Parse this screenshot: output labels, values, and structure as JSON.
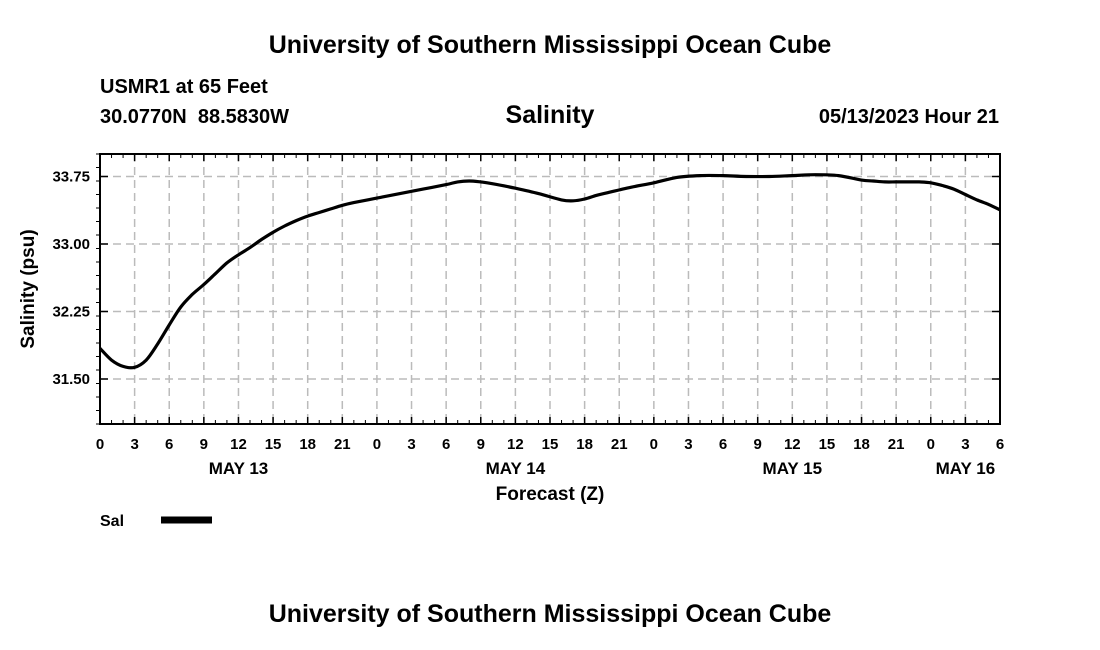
{
  "header": {
    "title": "University of Southern Mississippi Ocean Cube",
    "station": "USMR1 at 65 Feet",
    "coordinates": "30.0770N  88.5830W",
    "subtitle": "Salinity",
    "datetime": "05/13/2023 Hour 21"
  },
  "footer": {
    "title": "University of Southern Mississippi Ocean Cube"
  },
  "chart_data": {
    "type": "line",
    "title": "Salinity",
    "xlabel": "Forecast (Z)",
    "ylabel": "Salinity (psu)",
    "x_unit": "hours since MAY 13 00Z",
    "xlim": [
      0,
      78
    ],
    "ylim": [
      31.0,
      34.0
    ],
    "ytick_values": [
      31.5,
      32.25,
      33.0,
      33.75
    ],
    "ytick_labels": [
      "31.50",
      "32.25",
      "33.00",
      "33.75"
    ],
    "xtick_values": [
      0,
      3,
      6,
      9,
      12,
      15,
      18,
      21,
      24,
      27,
      30,
      33,
      36,
      39,
      42,
      45,
      48,
      51,
      54,
      57,
      60,
      63,
      66,
      69,
      72,
      75,
      78
    ],
    "xtick_labels": [
      "0",
      "3",
      "6",
      "9",
      "12",
      "15",
      "18",
      "21",
      "0",
      "3",
      "6",
      "9",
      "12",
      "15",
      "18",
      "21",
      "0",
      "3",
      "6",
      "9",
      "12",
      "15",
      "18",
      "21",
      "0",
      "3",
      "6"
    ],
    "date_labels": [
      {
        "x": 12,
        "label": "MAY 13"
      },
      {
        "x": 36,
        "label": "MAY 14"
      },
      {
        "x": 60,
        "label": "MAY 15"
      },
      {
        "x": 75,
        "label": "MAY 16"
      }
    ],
    "grid": true,
    "legend_position": "bottom-left",
    "series": [
      {
        "name": "Sal",
        "color": "#000000",
        "x": [
          0,
          1,
          2,
          3,
          4,
          5,
          6,
          7,
          8,
          9,
          10,
          11,
          12,
          13,
          14,
          15,
          16,
          17,
          18,
          19,
          20,
          21,
          22,
          24,
          26,
          28,
          30,
          31,
          32,
          33,
          34,
          36,
          38,
          40,
          41,
          42,
          43,
          44,
          46,
          48,
          50,
          52,
          54,
          56,
          58,
          60,
          62,
          64,
          66,
          67,
          68,
          69,
          70,
          71,
          72,
          73,
          74,
          75,
          76,
          77,
          78
        ],
        "y": [
          31.84,
          31.71,
          31.64,
          31.63,
          31.71,
          31.89,
          32.1,
          32.3,
          32.44,
          32.55,
          32.67,
          32.79,
          32.88,
          32.96,
          33.05,
          33.13,
          33.2,
          33.26,
          33.31,
          33.35,
          33.39,
          33.43,
          33.46,
          33.51,
          33.56,
          33.61,
          33.66,
          33.69,
          33.7,
          33.69,
          33.67,
          33.62,
          33.56,
          33.49,
          33.48,
          33.5,
          33.54,
          33.57,
          33.63,
          33.68,
          33.74,
          33.76,
          33.76,
          33.75,
          33.75,
          33.76,
          33.77,
          33.76,
          33.71,
          33.7,
          33.69,
          33.69,
          33.69,
          33.69,
          33.68,
          33.65,
          33.61,
          33.55,
          33.49,
          33.44,
          33.38
        ]
      }
    ]
  }
}
